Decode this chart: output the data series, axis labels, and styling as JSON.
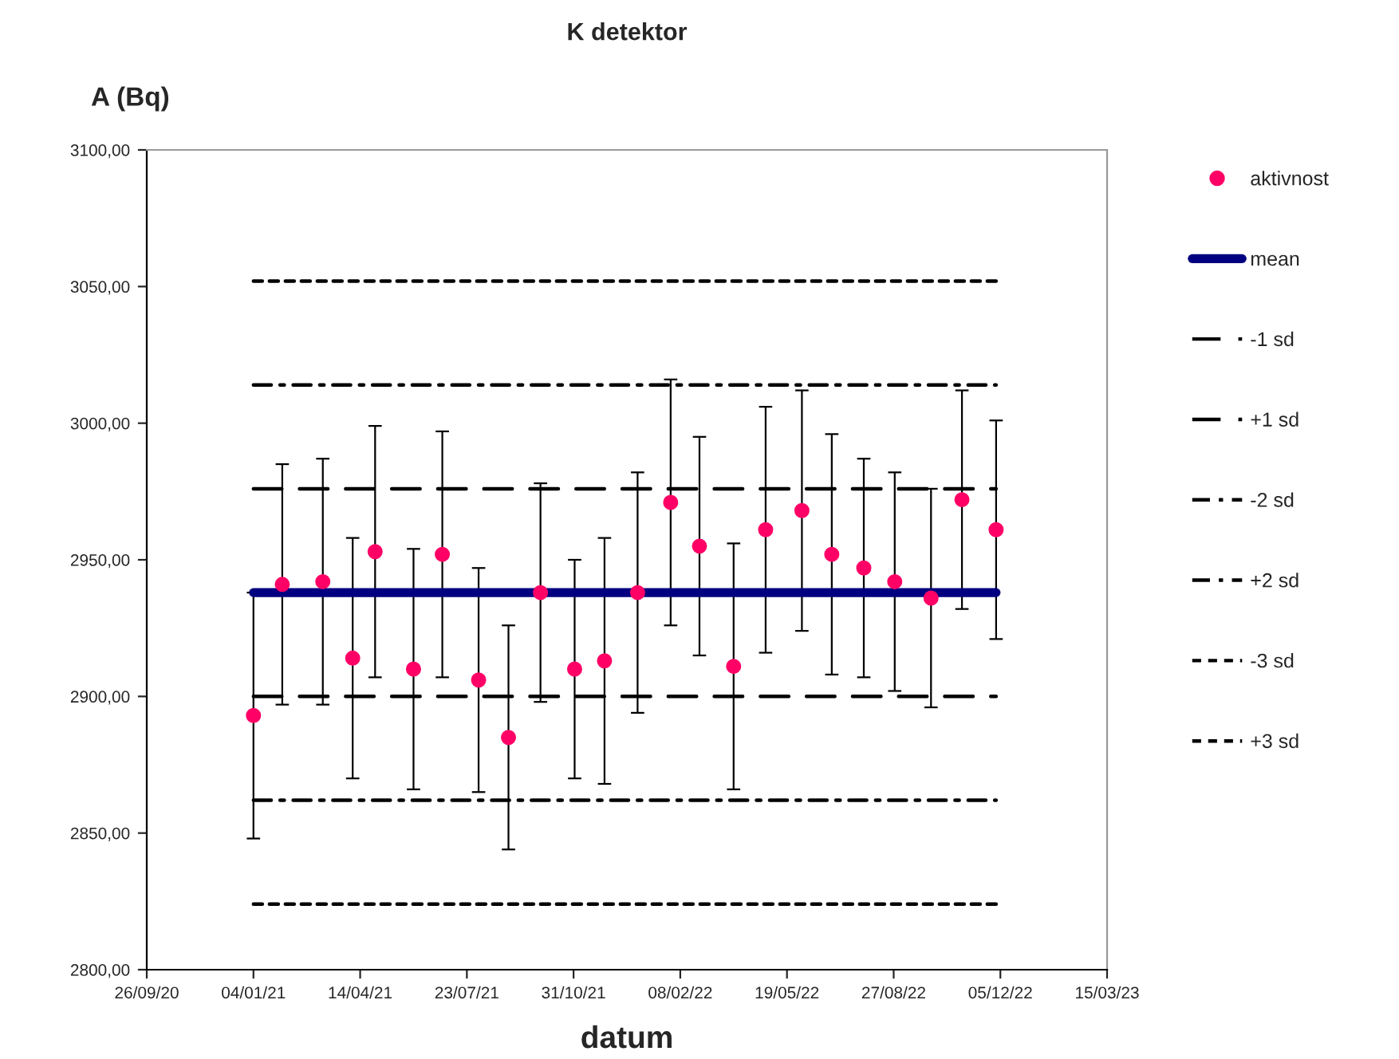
{
  "chart_data": {
    "type": "scatter",
    "title": "K detektor",
    "xlabel": "datum",
    "ylabel": "A (Bq)",
    "xlim": [
      "2020-09-26",
      "2023-03-15"
    ],
    "xticks": [
      {
        "value": "2020-09-26",
        "label": "26/09/20"
      },
      {
        "value": "2021-01-04",
        "label": "04/01/21"
      },
      {
        "value": "2021-04-14",
        "label": "14/04/21"
      },
      {
        "value": "2021-07-23",
        "label": "23/07/21"
      },
      {
        "value": "2021-10-31",
        "label": "31/10/21"
      },
      {
        "value": "2022-02-08",
        "label": "08/02/22"
      },
      {
        "value": "2022-05-19",
        "label": "19/05/22"
      },
      {
        "value": "2022-08-27",
        "label": "27/08/22"
      },
      {
        "value": "2022-12-05",
        "label": "05/12/22"
      },
      {
        "value": "2023-03-15",
        "label": "15/03/23"
      }
    ],
    "ylim": [
      2800,
      3100
    ],
    "yticks": [
      {
        "value": 2800,
        "label": "2800,00"
      },
      {
        "value": 2850,
        "label": "2850,00"
      },
      {
        "value": 2900,
        "label": "2900,00"
      },
      {
        "value": 2950,
        "label": "2950,00"
      },
      {
        "value": 3000,
        "label": "3000,00"
      },
      {
        "value": 3050,
        "label": "3050,00"
      },
      {
        "value": 3100,
        "label": "3100,00"
      }
    ],
    "grid": false,
    "legend": "right",
    "series": [
      {
        "name": "aktivnost",
        "color": "#ff0066",
        "marker": "circle",
        "x": [
          "2021-01-04",
          "2021-01-31",
          "2021-03-10",
          "2021-04-07",
          "2021-04-28",
          "2021-06-03",
          "2021-06-30",
          "2021-08-03",
          "2021-08-31",
          "2021-09-30",
          "2021-11-01",
          "2021-11-29",
          "2021-12-30",
          "2022-01-30",
          "2022-02-26",
          "2022-03-30",
          "2022-04-29",
          "2022-06-02",
          "2022-06-30",
          "2022-07-30",
          "2022-08-28",
          "2022-10-01",
          "2022-10-30",
          "2022-12-01"
        ],
        "values": [
          2893,
          2941,
          2942,
          2914,
          2953,
          2910,
          2952,
          2906,
          2885,
          2938,
          2910,
          2913,
          2938,
          2971,
          2955,
          2911,
          2961,
          2968,
          2952,
          2947,
          2942,
          2936,
          2972,
          2961
        ],
        "errors": [
          45,
          44,
          45,
          44,
          46,
          44,
          45,
          41,
          41,
          40,
          40,
          45,
          44,
          45,
          40,
          45,
          45,
          44,
          44,
          40,
          40,
          40,
          40,
          40
        ]
      },
      {
        "name": "mean",
        "type": "line",
        "color": "#000080",
        "line_style": "solid",
        "x": [
          "2021-01-04",
          "2022-12-01"
        ],
        "values": [
          2938,
          2938
        ]
      },
      {
        "name": "-1 sd",
        "type": "line",
        "color": "#000000",
        "line_style": "dashed",
        "x": [
          "2021-01-04",
          "2022-12-01"
        ],
        "values": [
          2900,
          2900
        ]
      },
      {
        "name": "+1 sd",
        "type": "line",
        "color": "#000000",
        "line_style": "dashed",
        "x": [
          "2021-01-04",
          "2022-12-01"
        ],
        "values": [
          2976,
          2976
        ]
      },
      {
        "name": "-2 sd",
        "type": "line",
        "color": "#000000",
        "line_style": "dashdot",
        "x": [
          "2021-01-04",
          "2022-12-01"
        ],
        "values": [
          2862,
          2862
        ]
      },
      {
        "name": "+2 sd",
        "type": "line",
        "color": "#000000",
        "line_style": "dashdot",
        "x": [
          "2021-01-04",
          "2022-12-01"
        ],
        "values": [
          3014,
          3014
        ]
      },
      {
        "name": "-3 sd",
        "type": "line",
        "color": "#000000",
        "line_style": "dotted",
        "x": [
          "2021-01-04",
          "2022-12-01"
        ],
        "values": [
          2824,
          2824
        ]
      },
      {
        "name": "+3 sd",
        "type": "line",
        "color": "#000000",
        "line_style": "dotted",
        "x": [
          "2021-01-04",
          "2022-12-01"
        ],
        "values": [
          3052,
          3052
        ]
      }
    ]
  }
}
